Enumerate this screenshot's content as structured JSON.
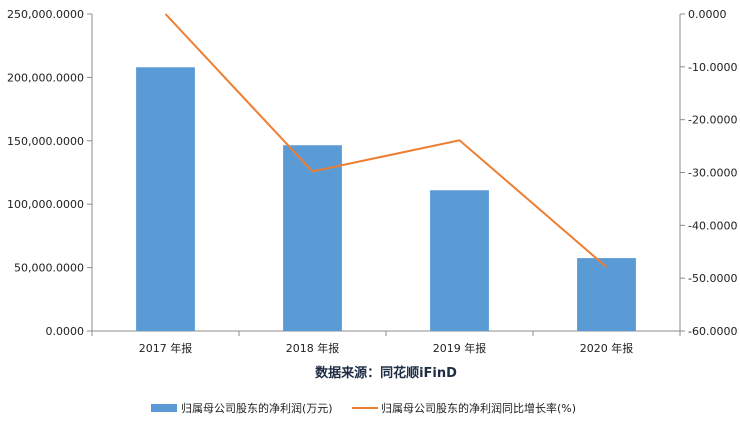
{
  "chart_data": {
    "type": "bar",
    "categories": [
      "2017 年报",
      "2018 年报",
      "2019 年报",
      "2020 年报"
    ],
    "series": [
      {
        "name": "归属母公司股东的净利润(万元)",
        "type": "bar",
        "axis": "left",
        "color": "#5b9bd5",
        "values": [
          208000,
          146500,
          111000,
          57500
        ]
      },
      {
        "name": "归属母公司股东的净利润同比增长率(%)",
        "type": "line",
        "axis": "right",
        "color": "#ed7d31",
        "values": [
          0.5,
          -29.8,
          -23.9,
          -47.9
        ]
      }
    ],
    "y_left": {
      "range": [
        0,
        250000
      ],
      "ticks": [
        0,
        50000,
        100000,
        150000,
        200000,
        250000
      ],
      "tick_labels": [
        "0.0000",
        "50,000.0000",
        "100,000.0000",
        "150,000.0000",
        "200,000.0000",
        "250,000.0000"
      ]
    },
    "y_right": {
      "range": [
        -60,
        0
      ],
      "ticks": [
        0,
        -10,
        -20,
        -30,
        -40,
        -50,
        -60
      ],
      "tick_labels": [
        "0.0000",
        "-10.0000",
        "-20.0000",
        "-30.0000",
        "-40.0000",
        "-50.0000",
        "-60.0000"
      ]
    },
    "source": "数据来源：同花顺iFinD",
    "legend_position": "bottom",
    "grid": false
  }
}
